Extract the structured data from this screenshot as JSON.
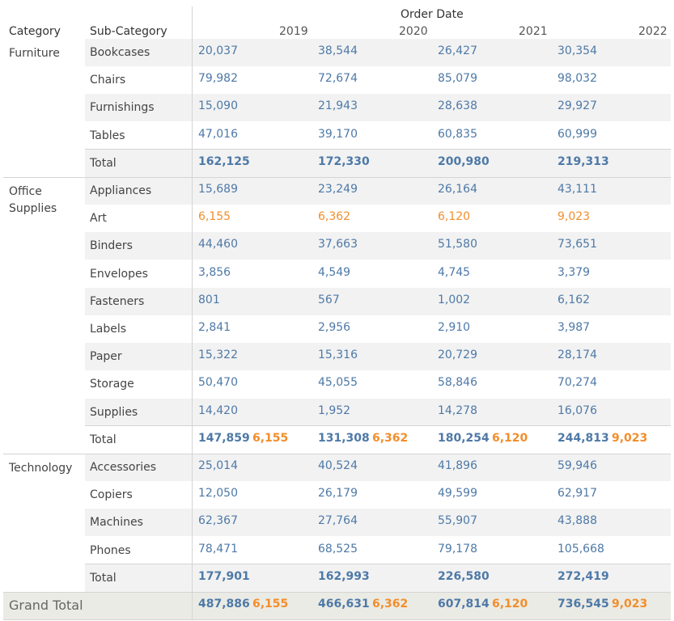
{
  "header": {
    "order_date": "Order Date",
    "category": "Category",
    "sub_category": "Sub-Category",
    "years": [
      "2019",
      "2020",
      "2021",
      "2022"
    ]
  },
  "colors": {
    "value": "#4e79a7",
    "highlight": "#f28e2b",
    "band": "#f2f2f2",
    "grand_band": "#ebebe5"
  },
  "groups": [
    {
      "category": "Furniture",
      "rows": [
        {
          "sub": "Bookcases",
          "values": [
            "20,037",
            "38,544",
            "26,427",
            "30,354"
          ]
        },
        {
          "sub": "Chairs",
          "values": [
            "79,982",
            "72,674",
            "85,079",
            "98,032"
          ]
        },
        {
          "sub": "Furnishings",
          "values": [
            "15,090",
            "21,943",
            "28,638",
            "29,927"
          ]
        },
        {
          "sub": "Tables",
          "values": [
            "47,016",
            "39,170",
            "60,835",
            "60,999"
          ]
        }
      ],
      "total": {
        "label": "Total",
        "values": [
          "162,125",
          "172,330",
          "200,980",
          "219,313"
        ],
        "highlights": [
          "",
          "",
          "",
          ""
        ]
      }
    },
    {
      "category": "Office Supplies",
      "category_lines": [
        "Office",
        "Supplies"
      ],
      "rows": [
        {
          "sub": "Appliances",
          "values": [
            "15,689",
            "23,249",
            "26,164",
            "43,111"
          ]
        },
        {
          "sub": "Art",
          "values": [
            "6,155",
            "6,362",
            "6,120",
            "9,023"
          ],
          "highlight": true
        },
        {
          "sub": "Binders",
          "values": [
            "44,460",
            "37,663",
            "51,580",
            "73,651"
          ]
        },
        {
          "sub": "Envelopes",
          "values": [
            "3,856",
            "4,549",
            "4,745",
            "3,379"
          ]
        },
        {
          "sub": "Fasteners",
          "values": [
            "801",
            "567",
            "1,002",
            "6,162"
          ]
        },
        {
          "sub": "Labels",
          "values": [
            "2,841",
            "2,956",
            "2,910",
            "3,987"
          ]
        },
        {
          "sub": "Paper",
          "values": [
            "15,322",
            "15,316",
            "20,729",
            "28,174"
          ]
        },
        {
          "sub": "Storage",
          "values": [
            "50,470",
            "45,055",
            "58,846",
            "70,274"
          ]
        },
        {
          "sub": "Supplies",
          "values": [
            "14,420",
            "1,952",
            "14,278",
            "16,076"
          ]
        }
      ],
      "total": {
        "label": "Total",
        "values": [
          "147,859",
          "131,308",
          "180,254",
          "244,813"
        ],
        "highlights": [
          "6,155",
          "6,362",
          "6,120",
          "9,023"
        ]
      }
    },
    {
      "category": "Technology",
      "rows": [
        {
          "sub": "Accessories",
          "values": [
            "25,014",
            "40,524",
            "41,896",
            "59,946"
          ]
        },
        {
          "sub": "Copiers",
          "values": [
            "12,050",
            "26,179",
            "49,599",
            "62,917"
          ]
        },
        {
          "sub": "Machines",
          "values": [
            "62,367",
            "27,764",
            "55,907",
            "43,888"
          ]
        },
        {
          "sub": "Phones",
          "values": [
            "78,471",
            "68,525",
            "79,178",
            "105,668"
          ]
        }
      ],
      "total": {
        "label": "Total",
        "values": [
          "177,901",
          "162,993",
          "226,580",
          "272,419"
        ],
        "highlights": [
          "",
          "",
          "",
          ""
        ]
      }
    }
  ],
  "grand_total": {
    "label": "Grand Total",
    "values": [
      "487,886",
      "466,631",
      "607,814",
      "736,545"
    ],
    "highlights": [
      "6,155",
      "6,362",
      "6,120",
      "9,023"
    ]
  }
}
